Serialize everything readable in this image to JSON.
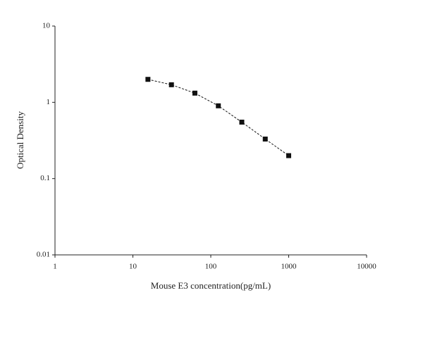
{
  "chart_data": {
    "type": "line",
    "x_label": "Mouse E3 concentration(pg/mL)",
    "y_label": "Optical Density",
    "x": [
      15.6,
      31.25,
      62.5,
      125,
      250,
      500,
      1000
    ],
    "series": [
      {
        "color": "#111111",
        "values": [
          2.0,
          1.7,
          1.32,
          0.9,
          0.55,
          0.33,
          0.2
        ]
      }
    ],
    "xlog": true,
    "ylog": true,
    "xlim": [
      1,
      10000
    ],
    "ylim": [
      0.01,
      10
    ],
    "xticks": [
      1,
      10,
      100,
      1000,
      10000
    ],
    "yticks": [
      0.01,
      0.1,
      1,
      10
    ]
  }
}
